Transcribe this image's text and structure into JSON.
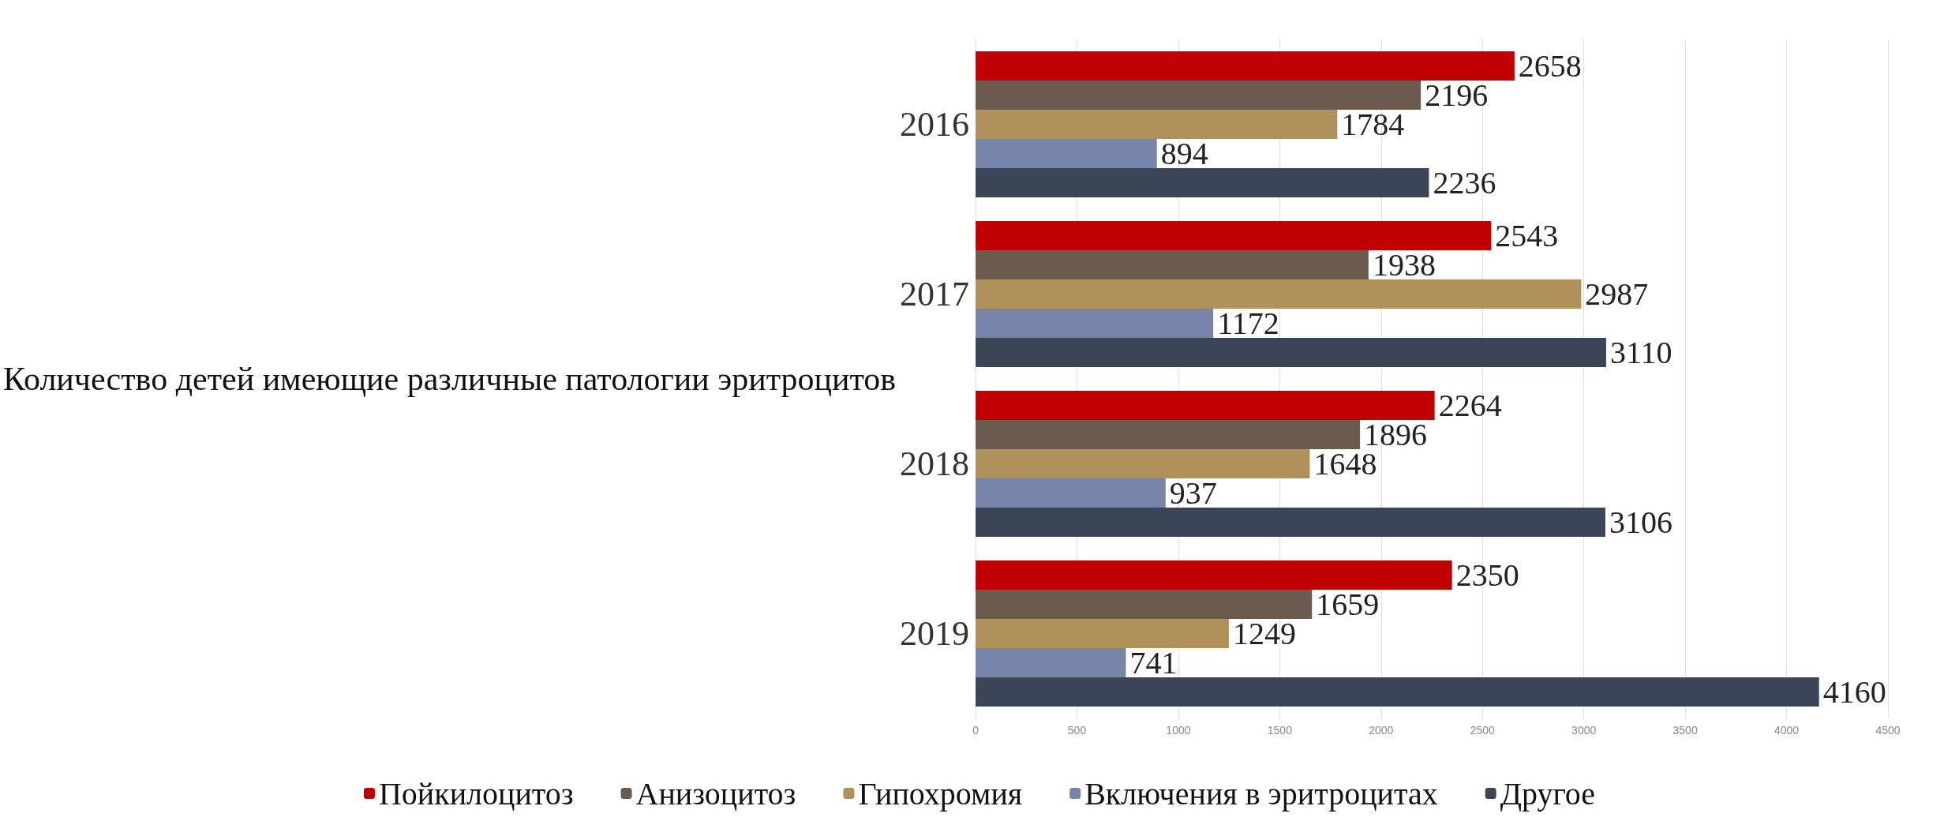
{
  "chart_data": {
    "type": "bar",
    "orientation": "horizontal",
    "ylabel": "Количество детей имеющие различные патологии эритроцитов",
    "categories": [
      "2016",
      "2017",
      "2018",
      "2019"
    ],
    "series": [
      {
        "name": "Пойкилоцитоз",
        "color": "#c00000",
        "values": [
          2658,
          2543,
          2264,
          2350
        ]
      },
      {
        "name": "Анизоцитоз",
        "color": "#6b5a4e",
        "values": [
          2196,
          1938,
          1896,
          1659
        ]
      },
      {
        "name": "Гипохромия",
        "color": "#b0915a",
        "values": [
          1784,
          2987,
          1648,
          1249
        ]
      },
      {
        "name": "Включения в эритроцитах",
        "color": "#7784aa",
        "values": [
          894,
          1172,
          937,
          741
        ]
      },
      {
        "name": "Другое",
        "color": "#3b4556",
        "values": [
          2236,
          3110,
          3106,
          4160
        ]
      }
    ],
    "xlim": [
      0,
      4500
    ],
    "xticks": [
      0,
      500,
      1000,
      1500,
      2000,
      2500,
      3000,
      3500,
      4000,
      4500
    ],
    "grid": "x",
    "legend": "bottom",
    "data_labels": true
  }
}
